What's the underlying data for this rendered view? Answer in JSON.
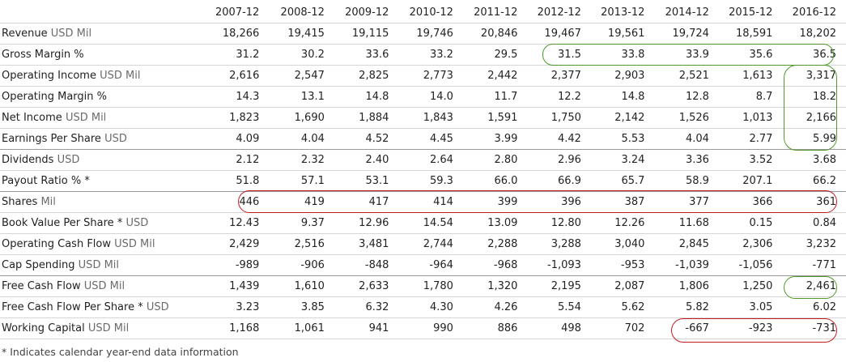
{
  "years": [
    "2007-12",
    "2008-12",
    "2009-12",
    "2010-12",
    "2011-12",
    "2012-12",
    "2013-12",
    "2014-12",
    "2015-12",
    "2016-12"
  ],
  "rows": [
    {
      "label": "Revenue",
      "unit": "USD Mil",
      "values": [
        "18,266",
        "19,415",
        "19,115",
        "19,746",
        "20,846",
        "19,467",
        "19,561",
        "19,724",
        "18,591",
        "18,202"
      ]
    },
    {
      "label": "Gross Margin %",
      "unit": "",
      "values": [
        "31.2",
        "30.2",
        "33.6",
        "33.2",
        "29.5",
        "31.5",
        "33.8",
        "33.9",
        "35.6",
        "36.5"
      ]
    },
    {
      "label": "Operating Income",
      "unit": "USD Mil",
      "values": [
        "2,616",
        "2,547",
        "2,825",
        "2,773",
        "2,442",
        "2,377",
        "2,903",
        "2,521",
        "1,613",
        "3,317"
      ]
    },
    {
      "label": "Operating Margin %",
      "unit": "",
      "values": [
        "14.3",
        "13.1",
        "14.8",
        "14.0",
        "11.7",
        "12.2",
        "14.8",
        "12.8",
        "8.7",
        "18.2"
      ]
    },
    {
      "label": "Net Income",
      "unit": "USD Mil",
      "values": [
        "1,823",
        "1,690",
        "1,884",
        "1,843",
        "1,591",
        "1,750",
        "2,142",
        "1,526",
        "1,013",
        "2,166"
      ]
    },
    {
      "label": "Earnings Per Share",
      "unit": "USD",
      "values": [
        "4.09",
        "4.04",
        "4.52",
        "4.45",
        "3.99",
        "4.42",
        "5.53",
        "4.04",
        "2.77",
        "5.99"
      ]
    },
    {
      "label": "Dividends",
      "unit": "USD",
      "values": [
        "2.12",
        "2.32",
        "2.40",
        "2.64",
        "2.80",
        "2.96",
        "3.24",
        "3.36",
        "3.52",
        "3.68"
      ]
    },
    {
      "label": "Payout Ratio % *",
      "unit": "",
      "values": [
        "51.8",
        "57.1",
        "53.1",
        "59.3",
        "66.0",
        "66.9",
        "65.7",
        "58.9",
        "207.1",
        "66.2"
      ]
    },
    {
      "label": "Shares",
      "unit": "Mil",
      "values": [
        "446",
        "419",
        "417",
        "414",
        "399",
        "396",
        "387",
        "377",
        "366",
        "361"
      ]
    },
    {
      "label": "Book Value Per Share *",
      "unit": "USD",
      "values": [
        "12.43",
        "9.37",
        "12.96",
        "14.54",
        "13.09",
        "12.80",
        "12.26",
        "11.68",
        "0.15",
        "0.84"
      ]
    },
    {
      "label": "Operating Cash Flow",
      "unit": "USD Mil",
      "values": [
        "2,429",
        "2,516",
        "3,481",
        "2,744",
        "2,288",
        "3,288",
        "3,040",
        "2,845",
        "2,306",
        "3,232"
      ]
    },
    {
      "label": "Cap Spending",
      "unit": "USD Mil",
      "values": [
        "-989",
        "-906",
        "-848",
        "-964",
        "-968",
        "-1,093",
        "-953",
        "-1,039",
        "-1,056",
        "-771"
      ]
    },
    {
      "label": "Free Cash Flow",
      "unit": "USD Mil",
      "values": [
        "1,439",
        "1,610",
        "2,633",
        "1,780",
        "1,320",
        "2,195",
        "2,087",
        "1,806",
        "1,250",
        "2,461"
      ]
    },
    {
      "label": "Free Cash Flow Per Share *",
      "unit": "USD",
      "values": [
        "3.23",
        "3.85",
        "6.32",
        "4.30",
        "4.26",
        "5.54",
        "5.62",
        "5.82",
        "3.05",
        "6.02"
      ]
    },
    {
      "label": "Working Capital",
      "unit": "USD Mil",
      "values": [
        "1,168",
        "1,061",
        "941",
        "990",
        "886",
        "498",
        "702",
        "-667",
        "-923",
        "-731"
      ]
    }
  ],
  "footnote": "* Indicates calendar year-end data information",
  "colors": {
    "highlight_green": "#4f9a2b",
    "highlight_red": "#c21d1d"
  }
}
